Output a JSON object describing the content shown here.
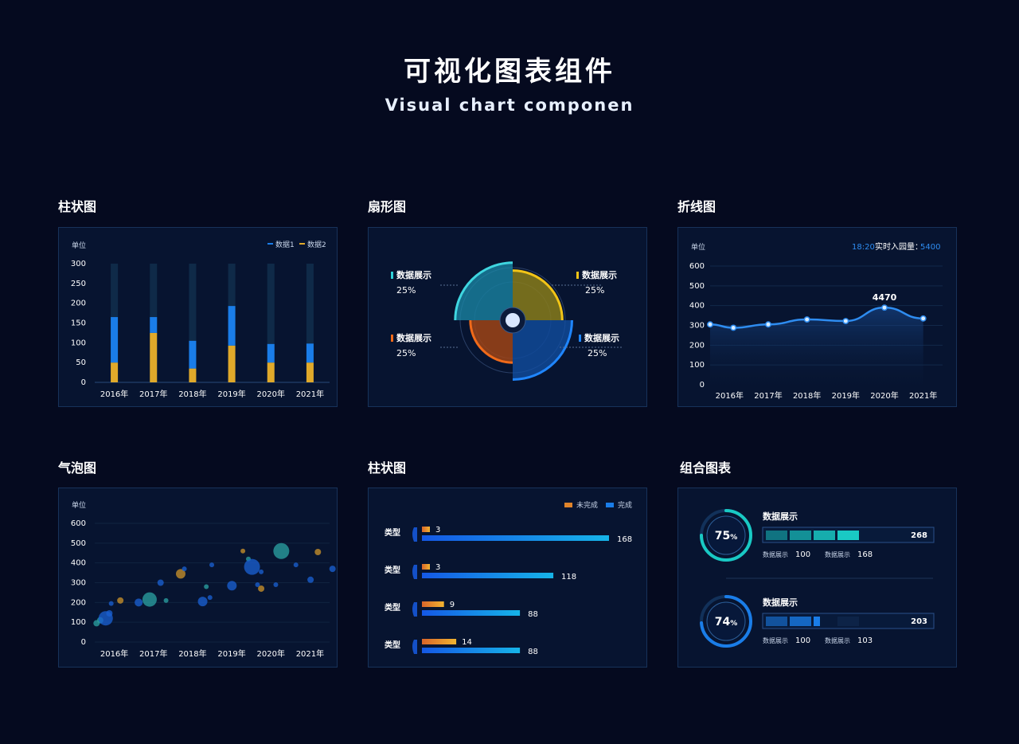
{
  "page": {
    "title": "可视化图表组件",
    "subtitle": "Visual chart componen"
  },
  "sections": {
    "bar": "柱状图",
    "pie": "扇形图",
    "line": "折线图",
    "bubble": "气泡图",
    "hbar": "柱状图",
    "combo": "组合图表"
  },
  "chart_data": [
    {
      "id": "stacked-bar",
      "type": "bar",
      "unit_label": "单位",
      "categories": [
        "2016年",
        "2017年",
        "2018年",
        "2019年",
        "2020年",
        "2021年"
      ],
      "ylim": [
        0,
        300
      ],
      "yticks": [
        0,
        50,
        100,
        150,
        200,
        250,
        300
      ],
      "max_track": 300,
      "series": [
        {
          "name": "数据1",
          "color": "#1a7de8",
          "values": [
            115,
            40,
            70,
            100,
            47,
            48
          ]
        },
        {
          "name": "数据2",
          "color": "#e0a92a",
          "values": [
            50,
            125,
            35,
            93,
            50,
            50
          ]
        }
      ]
    },
    {
      "id": "rose-pie",
      "type": "pie",
      "slices": [
        {
          "label": "数据展示",
          "value_text": "25%",
          "value": 25,
          "color": "#1b8aa8",
          "radius": 0.95
        },
        {
          "label": "数据展示",
          "value_text": "25%",
          "value": 25,
          "color": "#9a8a17",
          "radius": 0.82
        },
        {
          "label": "数据展示",
          "value_text": "25%",
          "value": 25,
          "color": "#1150a6",
          "radius": 0.98
        },
        {
          "label": "数据展示",
          "value_text": "25%",
          "value": 25,
          "color": "#b34a12",
          "radius": 0.7
        }
      ]
    },
    {
      "id": "line",
      "type": "line",
      "unit_label": "单位",
      "status_time": "18:20",
      "status_label": "实时入园量：",
      "status_value": "5400",
      "categories": [
        "2016年",
        "2017年",
        "2018年",
        "2019年",
        "2020年",
        "2021年"
      ],
      "ylim": [
        0,
        600
      ],
      "yticks": [
        0,
        100,
        200,
        300,
        400,
        500,
        600
      ],
      "points": [
        [
          0,
          305
        ],
        [
          0.6,
          288
        ],
        [
          1.5,
          305
        ],
        [
          2.5,
          330
        ],
        [
          3.5,
          322
        ],
        [
          4.5,
          390
        ],
        [
          5.5,
          335
        ]
      ],
      "highlight": {
        "value": "4470"
      },
      "color": "#2e8cf0"
    },
    {
      "id": "bubble",
      "type": "scatter",
      "unit_label": "单位",
      "categories": [
        "2016年",
        "2017年",
        "2018年",
        "2019年",
        "2020年",
        "2021年"
      ],
      "ylim": [
        0,
        600
      ],
      "yticks": [
        0,
        100,
        200,
        300,
        400,
        500,
        600
      ],
      "points": [
        {
          "x": 0.05,
          "y": 95,
          "r": 4,
          "c": "#2a9fa0"
        },
        {
          "x": 0.15,
          "y": 110,
          "r": 4,
          "c": "#2a9fa0"
        },
        {
          "x": 0.3,
          "y": 120,
          "r": 9,
          "c": "#1a5fd0"
        },
        {
          "x": 0.4,
          "y": 145,
          "r": 4,
          "c": "#1a5fd0"
        },
        {
          "x": 0.45,
          "y": 195,
          "r": 3,
          "c": "#1a5fd0"
        },
        {
          "x": 0.7,
          "y": 210,
          "r": 4,
          "c": "#c78f2a"
        },
        {
          "x": 1.2,
          "y": 200,
          "r": 5,
          "c": "#1a5fd0"
        },
        {
          "x": 1.5,
          "y": 215,
          "r": 9,
          "c": "#2a9fa0"
        },
        {
          "x": 1.95,
          "y": 210,
          "r": 3,
          "c": "#2a9fa0"
        },
        {
          "x": 1.8,
          "y": 300,
          "r": 4,
          "c": "#1a5fd0"
        },
        {
          "x": 2.35,
          "y": 345,
          "r": 6,
          "c": "#c78f2a"
        },
        {
          "x": 2.45,
          "y": 370,
          "r": 3,
          "c": "#1a5fd0"
        },
        {
          "x": 2.95,
          "y": 205,
          "r": 6,
          "c": "#1a5fd0"
        },
        {
          "x": 3.15,
          "y": 225,
          "r": 3,
          "c": "#1a5fd0"
        },
        {
          "x": 3.05,
          "y": 280,
          "r": 3,
          "c": "#2a9fa0"
        },
        {
          "x": 3.2,
          "y": 390,
          "r": 3,
          "c": "#1a5fd0"
        },
        {
          "x": 3.75,
          "y": 285,
          "r": 6,
          "c": "#1a5fd0"
        },
        {
          "x": 4.05,
          "y": 460,
          "r": 3,
          "c": "#c78f2a"
        },
        {
          "x": 4.2,
          "y": 420,
          "r": 3,
          "c": "#2a9fa0"
        },
        {
          "x": 4.3,
          "y": 380,
          "r": 10,
          "c": "#1a5fd0"
        },
        {
          "x": 4.45,
          "y": 290,
          "r": 3,
          "c": "#1a5fd0"
        },
        {
          "x": 4.55,
          "y": 270,
          "r": 4,
          "c": "#c78f2a"
        },
        {
          "x": 4.55,
          "y": 355,
          "r": 3,
          "c": "#1a5fd0"
        },
        {
          "x": 4.95,
          "y": 290,
          "r": 3,
          "c": "#1a5fd0"
        },
        {
          "x": 5.1,
          "y": 460,
          "r": 10,
          "c": "#2a9fa0"
        },
        {
          "x": 5.5,
          "y": 390,
          "r": 3,
          "c": "#1a5fd0"
        },
        {
          "x": 5.9,
          "y": 315,
          "r": 4,
          "c": "#1a5fd0"
        },
        {
          "x": 6.1,
          "y": 455,
          "r": 4,
          "c": "#c78f2a"
        },
        {
          "x": 6.5,
          "y": 370,
          "r": 4,
          "c": "#1a5fd0"
        }
      ]
    },
    {
      "id": "hbar",
      "type": "bar",
      "orientation": "horizontal",
      "legend": [
        {
          "name": "未完成",
          "color": "#e0842a"
        },
        {
          "name": "完成",
          "color": "#1a7de8"
        }
      ],
      "max": 168,
      "rows": [
        {
          "label": "类型",
          "incomplete": 3,
          "complete": 168
        },
        {
          "label": "类型",
          "incomplete": 3,
          "complete": 118
        },
        {
          "label": "类型",
          "incomplete": 9,
          "complete": 88
        },
        {
          "label": "类型",
          "incomplete": 14,
          "complete": 88
        }
      ]
    },
    {
      "id": "combo",
      "type": "bar",
      "items": [
        {
          "percent": 75,
          "percent_text": "75",
          "title": "数据展示",
          "total": "268",
          "filled_segments": 4,
          "segments": 4,
          "color": "#19c9c4",
          "label_a": "数据展示",
          "value_a": "100",
          "label_b": "数据展示",
          "value_b": "168"
        },
        {
          "percent": 74,
          "percent_text": "74",
          "title": "数据展示",
          "total": "203",
          "filled_segments": 3,
          "segments": 4,
          "color": "#1a7de8",
          "label_a": "数据展示",
          "value_a": "100",
          "label_b": "数据展示",
          "value_b": "103"
        }
      ],
      "percent_sign": "%"
    }
  ]
}
